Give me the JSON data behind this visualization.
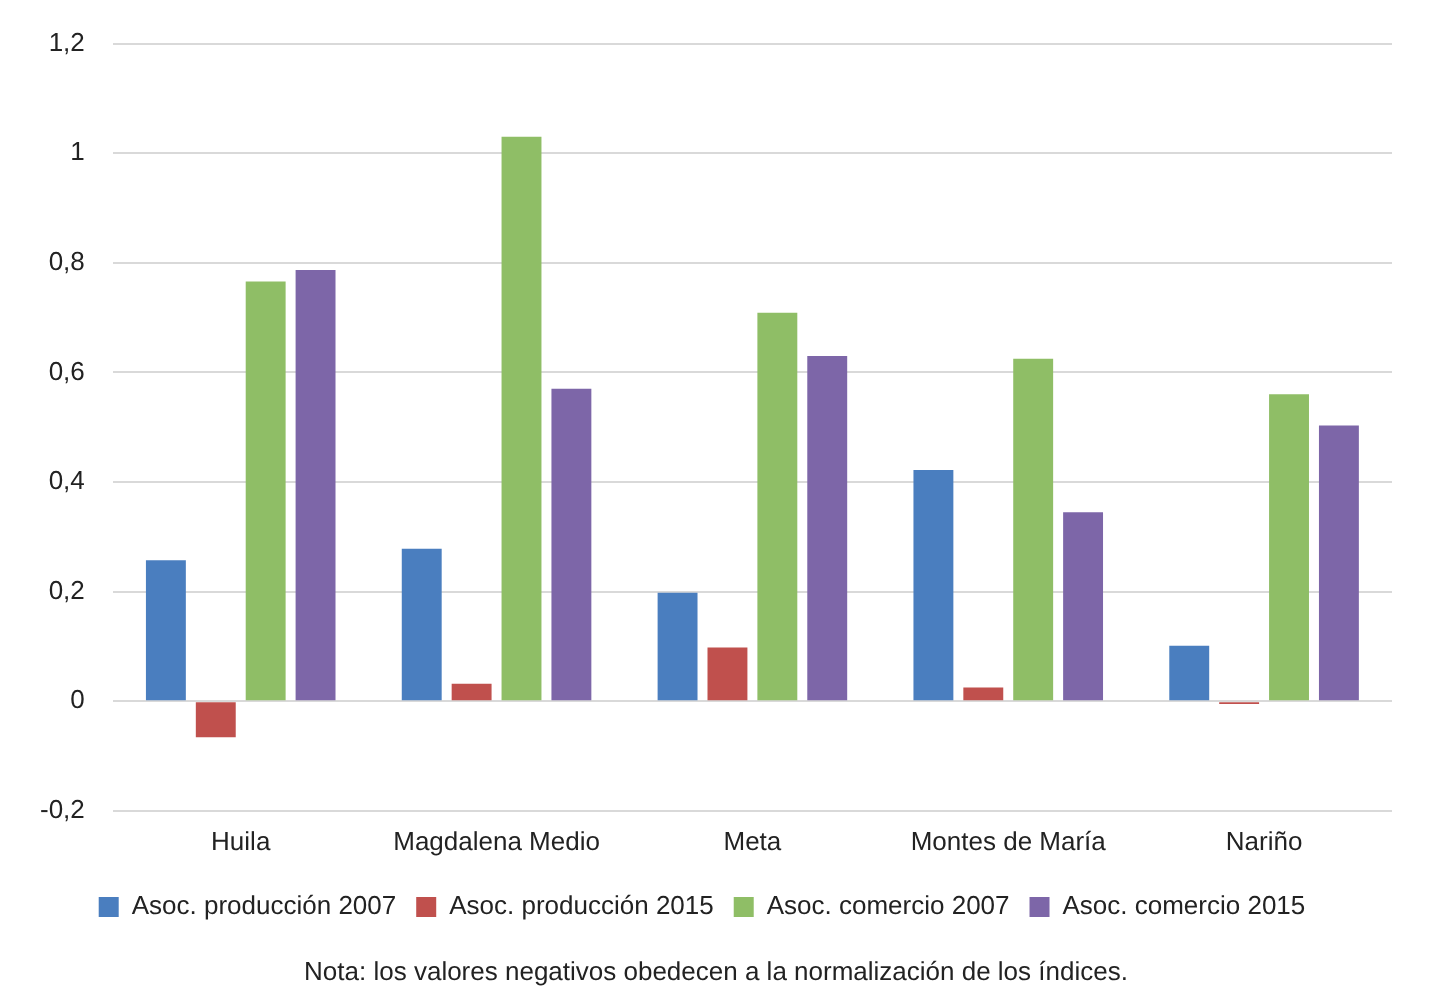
{
  "chart_data": {
    "type": "bar",
    "categories": [
      "Huila",
      "Magdalena Medio",
      "Meta",
      "Montes de María",
      "Nariño"
    ],
    "series": [
      {
        "name": "Asoc. producción 2007",
        "color": "#4a7ebf",
        "values": [
          0.257,
          0.278,
          0.198,
          0.422,
          0.101
        ]
      },
      {
        "name": "Asoc. producción 2015",
        "color": "#c0504d",
        "values": [
          -0.066,
          0.032,
          0.098,
          0.025,
          -0.005
        ]
      },
      {
        "name": "Asoc. comercio 2007",
        "color": "#8fbe66",
        "values": [
          0.766,
          1.03,
          0.709,
          0.625,
          0.56
        ]
      },
      {
        "name": "Asoc. comercio 2015",
        "color": "#7d66a8",
        "values": [
          0.787,
          0.57,
          0.63,
          0.345,
          0.503
        ]
      }
    ],
    "ylim": [
      -0.2,
      1.2
    ],
    "yticks": [
      {
        "value": -0.2,
        "label": "-0,2"
      },
      {
        "value": 0,
        "label": "0"
      },
      {
        "value": 0.2,
        "label": "0,2"
      },
      {
        "value": 0.4,
        "label": "0,4"
      },
      {
        "value": 0.6,
        "label": "0,6"
      },
      {
        "value": 0.8,
        "label": "0,8"
      },
      {
        "value": 1,
        "label": "1"
      },
      {
        "value": 1.2,
        "label": "1,2"
      }
    ],
    "grid": "y",
    "legend": "bottom",
    "annotations": [
      "Nota: los valores negativos obedecen a la normalización de los índices."
    ]
  }
}
